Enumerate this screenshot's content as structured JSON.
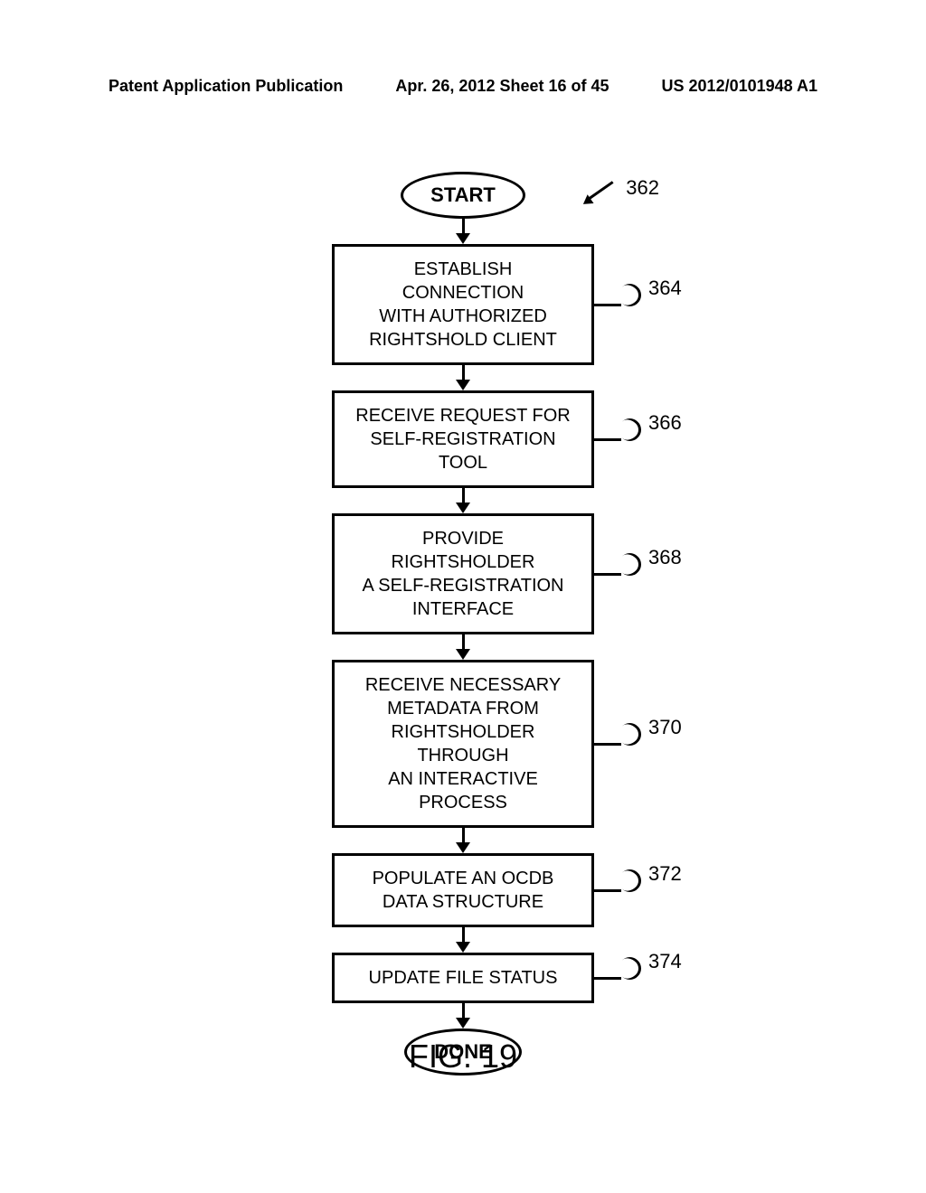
{
  "header": {
    "left": "Patent Application Publication",
    "center": "Apr. 26, 2012  Sheet 16 of 45",
    "right": "US 2012/0101948 A1"
  },
  "flowchart": {
    "ref_label": "362",
    "nodes": [
      {
        "type": "terminal",
        "text": "START",
        "ref": null
      },
      {
        "type": "process",
        "text": "ESTABLISH CONNECTION\nWITH AUTHORIZED\nRIGHTSHOLD CLIENT",
        "ref": "364"
      },
      {
        "type": "process",
        "text": "RECEIVE REQUEST FOR\nSELF-REGISTRATION TOOL",
        "ref": "366"
      },
      {
        "type": "process",
        "text": "PROVIDE RIGHTSHOLDER\nA SELF-REGISTRATION\nINTERFACE",
        "ref": "368"
      },
      {
        "type": "process",
        "text": "RECEIVE NECESSARY\nMETADATA FROM\nRIGHTSHOLDER THROUGH\nAN INTERACTIVE PROCESS",
        "ref": "370"
      },
      {
        "type": "process",
        "text": "POPULATE AN OCDB\nDATA STRUCTURE",
        "ref": "372"
      },
      {
        "type": "process",
        "text": "UPDATE FILE STATUS",
        "ref": "374"
      },
      {
        "type": "terminal",
        "text": "DONE",
        "ref": null
      }
    ]
  },
  "caption": "FIG. 19",
  "styling": {
    "border_width": 3,
    "border_color": "#000000",
    "background": "#ffffff",
    "font_family": "Arial, sans-serif",
    "node_font_size": 20,
    "label_font_size": 22,
    "caption_font_size": 36,
    "header_font_size": 18,
    "process_width": 290,
    "arrow_gap": 28
  }
}
